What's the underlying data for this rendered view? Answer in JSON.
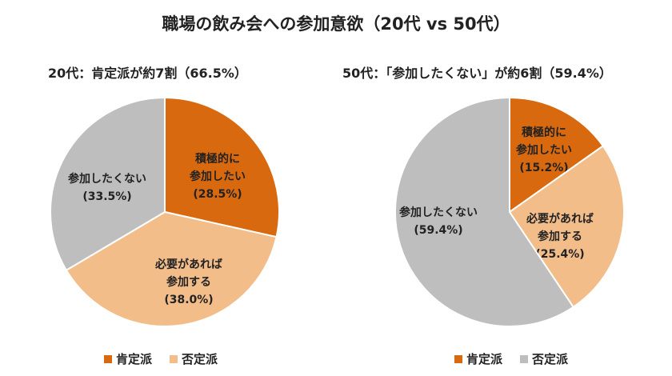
{
  "chart_data": [
    {
      "type": "pie",
      "title": "職場の飲み会への参加意欲（20代 vs 50代）",
      "subtitle": "20代：肯定派が約7割（66.5%）",
      "slices": [
        {
          "label": "積極的に\n参加したい",
          "value": 28.5,
          "display": "(28.5%)",
          "color": "#D8690F"
        },
        {
          "label": "必要があれば\n参加する",
          "value": 38.0,
          "display": "(38.0%)",
          "color": "#F3BD8A"
        },
        {
          "label": "参加したくない",
          "value": 33.5,
          "display": "(33.5%)",
          "color": "#BEBEBE"
        }
      ],
      "legend": [
        {
          "label": "肯定派",
          "color": "#D8690F"
        },
        {
          "label": "否定派",
          "color": "#F3BD8A"
        }
      ]
    },
    {
      "type": "pie",
      "subtitle": "50代：「参加したくない」が約6割（59.4%）",
      "slices": [
        {
          "label": "積極的に\n参加したい",
          "value": 15.2,
          "display": "(15.2%)",
          "color": "#D8690F"
        },
        {
          "label": "必要があれば\n参加する",
          "value": 25.4,
          "display": "(25.4%)",
          "color": "#F3BD8A"
        },
        {
          "label": "参加したくない",
          "value": 59.4,
          "display": "(59.4%)",
          "color": "#BEBEBE"
        }
      ],
      "legend": [
        {
          "label": "肯定派",
          "color": "#D8690F"
        },
        {
          "label": "否定派",
          "color": "#BEBEBE"
        }
      ]
    }
  ]
}
